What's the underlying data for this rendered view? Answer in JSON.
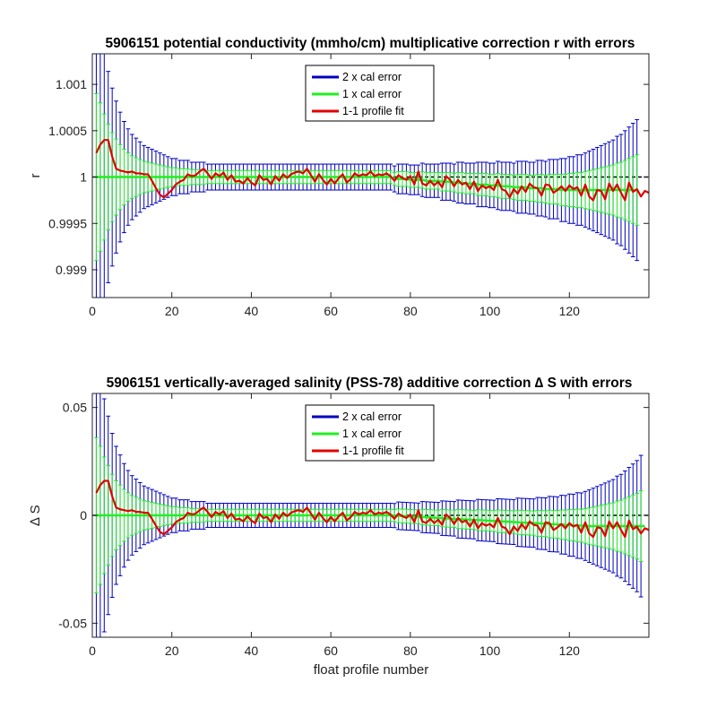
{
  "chart_data": [
    {
      "type": "line",
      "title": "5906151 potential conductivity (mmho/cm) multiplicative correction r with errors",
      "xlabel": "",
      "ylabel": "r",
      "xlim": [
        0,
        140
      ],
      "ylim": [
        0.9987,
        1.00133
      ],
      "xticks": [
        0,
        20,
        40,
        60,
        80,
        100,
        120
      ],
      "yticks": [
        0.999,
        0.9995,
        1,
        1.0005,
        1.001
      ],
      "ytick_labels": [
        "0.999",
        "0.9995",
        "1",
        "1.0005",
        "1.001"
      ],
      "reference_line": 1,
      "legend_position": "top-center",
      "legend": [
        "2 x cal error",
        "1 x cal error",
        "1-1 profile fit"
      ],
      "colors": {
        "two_x": "#0000bf",
        "one_x": "#22ee22",
        "fit": "#e00000",
        "reference": "#000000"
      },
      "center": [
        1,
        1,
        1,
        1,
        1,
        1,
        1,
        1,
        1,
        1,
        1,
        1,
        1,
        1,
        1,
        1,
        1,
        1,
        1,
        1,
        1,
        1,
        1,
        1,
        1,
        1,
        1,
        1,
        1,
        1,
        1,
        1,
        1,
        1,
        1,
        1,
        1,
        1,
        1,
        1,
        1,
        1,
        1,
        1,
        1,
        1,
        1,
        1,
        1,
        1,
        1,
        1,
        1,
        1,
        1,
        1,
        1,
        1,
        1,
        1,
        1,
        1,
        1,
        1,
        1,
        1,
        1,
        1,
        1,
        1,
        1,
        1,
        1,
        1,
        1,
        0.99998,
        0.99998,
        0.99998,
        0.99998,
        0.99997,
        0.99997,
        0.99997,
        0.99997,
        0.99996,
        0.99996,
        0.99996,
        0.99996,
        0.99995,
        0.99995,
        0.99995,
        0.99994,
        0.99994,
        0.99994,
        0.99993,
        0.99993,
        0.99993,
        0.99992,
        0.99992,
        0.99992,
        0.99991,
        0.99991,
        0.99991,
        0.9999,
        0.9999,
        0.9999,
        0.99989,
        0.99989,
        0.99989,
        0.99989,
        0.99988,
        0.99988,
        0.99988,
        0.99988,
        0.99987,
        0.99987,
        0.99987,
        0.99987,
        0.99986,
        0.99986,
        0.99986,
        0.99986,
        0.99986,
        0.99986,
        0.99986,
        0.99986,
        0.99986,
        0.99986,
        0.99986,
        0.99986,
        0.99986,
        0.99986,
        0.99986,
        0.99986,
        0.99986,
        0.99986,
        0.99986,
        0.99986
      ],
      "err1x": [
        0.0009,
        0.0008,
        0.00068,
        0.00057,
        0.00048,
        0.00041,
        0.00035,
        0.0003,
        0.00026,
        0.00023,
        0.00021,
        0.00019,
        0.00017,
        0.00016,
        0.00015,
        0.00014,
        0.00013,
        0.00012,
        0.00011,
        0.0001,
        0.0001,
        9e-05,
        9e-05,
        9e-05,
        8e-05,
        8e-05,
        8e-05,
        8e-05,
        7e-05,
        7e-05,
        7e-05,
        7e-05,
        7e-05,
        7e-05,
        7e-05,
        7e-05,
        7e-05,
        7e-05,
        7e-05,
        7e-05,
        7e-05,
        7e-05,
        7e-05,
        7e-05,
        7e-05,
        7e-05,
        7e-05,
        7e-05,
        7e-05,
        7e-05,
        7e-05,
        7e-05,
        7e-05,
        7e-05,
        7e-05,
        7e-05,
        7e-05,
        7e-05,
        7e-05,
        7e-05,
        7e-05,
        7e-05,
        7e-05,
        7e-05,
        7e-05,
        7e-05,
        7e-05,
        7e-05,
        7e-05,
        7e-05,
        7e-05,
        7e-05,
        7e-05,
        7e-05,
        7e-05,
        7e-05,
        8e-05,
        8e-05,
        8e-05,
        8e-05,
        8e-05,
        8e-05,
        9e-05,
        9e-05,
        9e-05,
        9e-05,
        9e-05,
        0.0001,
        0.0001,
        0.0001,
        0.0001,
        0.00011,
        0.00011,
        0.00011,
        0.00011,
        0.00011,
        0.00012,
        0.00012,
        0.00012,
        0.00012,
        0.00012,
        0.00013,
        0.00013,
        0.00013,
        0.00013,
        0.00013,
        0.00014,
        0.00014,
        0.00014,
        0.00014,
        0.00014,
        0.00015,
        0.00015,
        0.00015,
        0.00016,
        0.00016,
        0.00016,
        0.00017,
        0.00017,
        0.00018,
        0.00018,
        0.00019,
        0.00019,
        0.0002,
        0.00021,
        0.00022,
        0.00023,
        0.00024,
        0.00025,
        0.00026,
        0.00027,
        0.00029,
        0.0003,
        0.00032,
        0.00034,
        0.00036,
        0.00038,
        0.00041
      ],
      "err2x": [
        0.0018,
        0.0016,
        0.00136,
        0.00114,
        0.00096,
        0.00082,
        0.0007,
        0.0006,
        0.00052,
        0.00046,
        0.00042,
        0.00038,
        0.00034,
        0.00032,
        0.0003,
        0.00028,
        0.00026,
        0.00024,
        0.00022,
        0.0002,
        0.0002,
        0.00018,
        0.00018,
        0.00018,
        0.00016,
        0.00016,
        0.00016,
        0.00016,
        0.00014,
        0.00014,
        0.00014,
        0.00014,
        0.00014,
        0.00014,
        0.00014,
        0.00014,
        0.00014,
        0.00014,
        0.00014,
        0.00014,
        0.00014,
        0.00014,
        0.00014,
        0.00014,
        0.00014,
        0.00014,
        0.00014,
        0.00014,
        0.00014,
        0.00014,
        0.00014,
        0.00014,
        0.00014,
        0.00014,
        0.00014,
        0.00014,
        0.00014,
        0.00014,
        0.00014,
        0.00014,
        0.00014,
        0.00014,
        0.00014,
        0.00014,
        0.00014,
        0.00014,
        0.00014,
        0.00014,
        0.00014,
        0.00014,
        0.00014,
        0.00014,
        0.00014,
        0.00014,
        0.00014,
        0.00014,
        0.00016,
        0.00016,
        0.00016,
        0.00016,
        0.00016,
        0.00016,
        0.00018,
        0.00018,
        0.00018,
        0.00018,
        0.00018,
        0.0002,
        0.0002,
        0.0002,
        0.0002,
        0.00022,
        0.00022,
        0.00022,
        0.00022,
        0.00022,
        0.00024,
        0.00024,
        0.00024,
        0.00024,
        0.00024,
        0.00026,
        0.00026,
        0.00026,
        0.00026,
        0.00026,
        0.00028,
        0.00028,
        0.00028,
        0.00028,
        0.00028,
        0.0003,
        0.0003,
        0.0003,
        0.00032,
        0.00032,
        0.00032,
        0.00034,
        0.00034,
        0.00036,
        0.00036,
        0.00038,
        0.00038,
        0.0004,
        0.00042,
        0.00044,
        0.00046,
        0.00048,
        0.0005,
        0.00052,
        0.00054,
        0.00058,
        0.0006,
        0.00064,
        0.00068,
        0.00072,
        0.00076,
        0.00082
      ],
      "fit": [
        1.00026,
        1.00035,
        1.0004,
        1.0004,
        1.00022,
        1.00009,
        1.00007,
        1.00006,
        1.00005,
        1.00006,
        1.00004,
        1.00004,
        1.00003,
        1.00003,
        0.99996,
        0.99988,
        0.99981,
        0.99978,
        0.99982,
        0.99986,
        0.99992,
        0.99995,
        0.99997,
        1.00003,
        1.00001,
        1.00002,
        1.00006,
        1.00009,
        1.00004,
        0.99998,
        1.00004,
        1.00001,
        1.00005,
        0.99997,
        1.00002,
        0.99995,
        0.99996,
        0.99993,
        0.99999,
        0.99994,
        0.99991,
        1.00002,
        0.99997,
        0.99998,
        0.99992,
        1.00001,
        0.99996,
        1.00003,
        0.99999,
        1.00003,
        1.00005,
        1.00006,
        1.00004,
        1.00009,
        1.00002,
        0.99995,
        1.00003,
        0.99997,
        0.99992,
        0.99998,
        0.99993,
        0.99999,
        1.00003,
        0.99994,
        0.99998,
        1.00004,
        1.00001,
        1.00003,
        1.00002,
        1.00006,
        1.00001,
        1.00003,
        1.00002,
        1.00004,
        1.00001,
        0.99996,
        1.00002,
        0.99999,
        0.99997,
        1.00001,
        0.99992,
        1.00006,
        0.99993,
        0.99991,
        0.99996,
        0.99991,
        0.99995,
        0.99989,
        1.00001,
        0.99997,
        0.9999,
        0.99997,
        0.99992,
        0.99994,
        0.99987,
        0.99995,
        0.99985,
        0.99991,
        0.99988,
        0.9999,
        0.99986,
        0.99997,
        0.99987,
        0.99985,
        0.99978,
        0.99987,
        0.99982,
        0.9999,
        0.99984,
        0.99993,
        0.99989,
        0.99988,
        0.9998,
        0.99992,
        0.99991,
        0.99983,
        0.99986,
        0.9999,
        0.99985,
        0.99991,
        0.99987,
        0.99989,
        0.9998,
        0.99992,
        0.99979,
        0.99975,
        0.99986,
        0.99985,
        0.99976,
        0.99993,
        0.99985,
        0.99992,
        0.99983,
        0.99975,
        0.99994,
        0.99984,
        0.99987,
        0.99979,
        0.99985,
        0.99983
      ]
    },
    {
      "type": "line",
      "title": "5906151 vertically-averaged salinity (PSS-78) additive correction ∆ S with errors",
      "xlabel": "float profile number",
      "ylabel": "∆ S",
      "xlim": [
        0,
        140
      ],
      "ylim": [
        -0.0565,
        0.0565
      ],
      "xticks": [
        0,
        20,
        40,
        60,
        80,
        100,
        120
      ],
      "yticks": [
        -0.05,
        0,
        0.05
      ],
      "ytick_labels": [
        "-0.05",
        "0",
        "0.05"
      ],
      "reference_line": 0,
      "legend_position": "top-center",
      "legend": [
        "2 x cal error",
        "1 x cal error",
        "1-1 profile fit"
      ],
      "colors": {
        "two_x": "#0000bf",
        "one_x": "#22ee22",
        "fit": "#e00000",
        "reference": "#000000"
      },
      "center": [
        0,
        0,
        0,
        0,
        0,
        0,
        0,
        0,
        0,
        0,
        0,
        0,
        0,
        0,
        0,
        0,
        0,
        0,
        0,
        0,
        0,
        0,
        0,
        0,
        0,
        0,
        0,
        0,
        0,
        0,
        0,
        0,
        0,
        0,
        0,
        0,
        0,
        0,
        0,
        0,
        0,
        0,
        0,
        0,
        0,
        0,
        0,
        0,
        0,
        0,
        0,
        0,
        0,
        0,
        0,
        0,
        0,
        0,
        0,
        0,
        0,
        0,
        0,
        0,
        0,
        0,
        0,
        0,
        0,
        0,
        0,
        0,
        0,
        0,
        0,
        -0.0001,
        -0.0002,
        -0.0003,
        -0.0004,
        -0.0005,
        -0.0006,
        -0.0007,
        -0.0008,
        -0.0009,
        -0.001,
        -0.0011,
        -0.0012,
        -0.0013,
        -0.0014,
        -0.0015,
        -0.0016,
        -0.0017,
        -0.0018,
        -0.0019,
        -0.002,
        -0.0021,
        -0.0022,
        -0.0023,
        -0.0024,
        -0.0025,
        -0.0026,
        -0.0027,
        -0.0028,
        -0.0029,
        -0.003,
        -0.0031,
        -0.0032,
        -0.0033,
        -0.0034,
        -0.0035,
        -0.0036,
        -0.0037,
        -0.0038,
        -0.0039,
        -0.004,
        -0.0041,
        -0.0042,
        -0.0043,
        -0.0044,
        -0.0045,
        -0.0046,
        -0.0047,
        -0.0048,
        -0.0049,
        -0.005,
        -0.005,
        -0.005,
        -0.005,
        -0.005,
        -0.005,
        -0.005,
        -0.005,
        -0.005,
        -0.005,
        -0.005,
        -0.005,
        -0.005,
        -0.005,
        -0.005
      ],
      "err1x": [
        0.036,
        0.032,
        0.027,
        0.023,
        0.019,
        0.016,
        0.014,
        0.012,
        0.0104,
        0.0092,
        0.0084,
        0.0076,
        0.0068,
        0.0064,
        0.006,
        0.0056,
        0.0052,
        0.0048,
        0.0044,
        0.004,
        0.004,
        0.0036,
        0.0036,
        0.0036,
        0.0032,
        0.0032,
        0.0032,
        0.0032,
        0.0028,
        0.0028,
        0.0028,
        0.0028,
        0.0028,
        0.0028,
        0.0028,
        0.0028,
        0.0028,
        0.0028,
        0.0028,
        0.0028,
        0.0028,
        0.0028,
        0.0028,
        0.0028,
        0.0028,
        0.0028,
        0.0028,
        0.0028,
        0.0028,
        0.0028,
        0.0028,
        0.0028,
        0.0028,
        0.0028,
        0.0028,
        0.0028,
        0.0028,
        0.0028,
        0.0028,
        0.0028,
        0.0028,
        0.0028,
        0.0028,
        0.0028,
        0.0028,
        0.0028,
        0.0028,
        0.0028,
        0.0028,
        0.0028,
        0.0028,
        0.0028,
        0.0028,
        0.0028,
        0.0028,
        0.0028,
        0.0032,
        0.0032,
        0.0032,
        0.0032,
        0.0032,
        0.0032,
        0.0036,
        0.0036,
        0.0036,
        0.0036,
        0.0036,
        0.004,
        0.004,
        0.004,
        0.004,
        0.0044,
        0.0044,
        0.0044,
        0.0044,
        0.0044,
        0.0048,
        0.0048,
        0.0048,
        0.0048,
        0.0048,
        0.0052,
        0.0052,
        0.0052,
        0.0052,
        0.0052,
        0.0056,
        0.0056,
        0.0056,
        0.0056,
        0.0056,
        0.006,
        0.006,
        0.006,
        0.0064,
        0.0064,
        0.0064,
        0.0068,
        0.0068,
        0.0072,
        0.0072,
        0.0076,
        0.0076,
        0.008,
        0.0084,
        0.0088,
        0.0092,
        0.0096,
        0.01,
        0.0104,
        0.0108,
        0.0116,
        0.012,
        0.0128,
        0.0136,
        0.0144,
        0.0152,
        0.0164
      ],
      "err2x": [
        0.072,
        0.064,
        0.054,
        0.046,
        0.038,
        0.032,
        0.028,
        0.024,
        0.0208,
        0.0184,
        0.0168,
        0.0152,
        0.0136,
        0.0128,
        0.012,
        0.0112,
        0.0104,
        0.0096,
        0.0088,
        0.008,
        0.008,
        0.0072,
        0.0072,
        0.0072,
        0.0064,
        0.0064,
        0.0064,
        0.0064,
        0.0056,
        0.0056,
        0.0056,
        0.0056,
        0.0056,
        0.0056,
        0.0056,
        0.0056,
        0.0056,
        0.0056,
        0.0056,
        0.0056,
        0.0056,
        0.0056,
        0.0056,
        0.0056,
        0.0056,
        0.0056,
        0.0056,
        0.0056,
        0.0056,
        0.0056,
        0.0056,
        0.0056,
        0.0056,
        0.0056,
        0.0056,
        0.0056,
        0.0056,
        0.0056,
        0.0056,
        0.0056,
        0.0056,
        0.0056,
        0.0056,
        0.0056,
        0.0056,
        0.0056,
        0.0056,
        0.0056,
        0.0056,
        0.0056,
        0.0056,
        0.0056,
        0.0056,
        0.0056,
        0.0056,
        0.0056,
        0.0064,
        0.0064,
        0.0064,
        0.0064,
        0.0064,
        0.0064,
        0.0072,
        0.0072,
        0.0072,
        0.0072,
        0.0072,
        0.008,
        0.008,
        0.008,
        0.008,
        0.0088,
        0.0088,
        0.0088,
        0.0088,
        0.0088,
        0.0096,
        0.0096,
        0.0096,
        0.0096,
        0.0096,
        0.0104,
        0.0104,
        0.0104,
        0.0104,
        0.0104,
        0.0112,
        0.0112,
        0.0112,
        0.0112,
        0.0112,
        0.012,
        0.012,
        0.012,
        0.0128,
        0.0128,
        0.0128,
        0.0136,
        0.0136,
        0.0144,
        0.0144,
        0.0152,
        0.0152,
        0.016,
        0.0168,
        0.0176,
        0.0184,
        0.0192,
        0.02,
        0.0208,
        0.0216,
        0.0232,
        0.024,
        0.0256,
        0.0272,
        0.0288,
        0.0304,
        0.0328
      ],
      "fit": [
        0.0104,
        0.014,
        0.016,
        0.016,
        0.0088,
        0.0036,
        0.0028,
        0.0024,
        0.002,
        0.0024,
        0.0016,
        0.0016,
        0.0012,
        0.0012,
        -0.0016,
        -0.0048,
        -0.0076,
        -0.0088,
        -0.0072,
        -0.0056,
        -0.0032,
        -0.002,
        -0.0012,
        0.0012,
        0.0004,
        0.0008,
        0.0024,
        0.0036,
        0.0016,
        -0.0008,
        0.0016,
        0.0004,
        0.002,
        -0.0012,
        0.0008,
        -0.002,
        -0.0016,
        -0.0028,
        -0.0004,
        -0.0024,
        -0.0036,
        0.0008,
        -0.0012,
        -0.0008,
        -0.0032,
        0.0004,
        -0.0016,
        0.0012,
        -0.0004,
        0.0012,
        0.002,
        0.0024,
        0.0016,
        0.0036,
        0.0008,
        -0.002,
        0.0012,
        -0.0012,
        -0.0032,
        -0.0008,
        -0.0028,
        -0.0004,
        0.0012,
        -0.0024,
        -0.0008,
        0.0016,
        0.0004,
        0.0012,
        0.0008,
        0.0024,
        0.0004,
        0.0012,
        0.0008,
        0.0016,
        0.0004,
        -0.0016,
        0.0008,
        -0.0004,
        -0.0012,
        0.0004,
        -0.0032,
        0.0024,
        -0.0028,
        -0.0036,
        -0.0016,
        -0.0036,
        -0.002,
        -0.0044,
        0.0004,
        -0.0012,
        -0.004,
        -0.0012,
        -0.0032,
        -0.0024,
        -0.0052,
        -0.002,
        -0.006,
        -0.0036,
        -0.0048,
        -0.004,
        -0.0056,
        -0.0012,
        -0.0052,
        -0.006,
        -0.0088,
        -0.0052,
        -0.0072,
        -0.004,
        -0.0064,
        -0.0028,
        -0.0044,
        -0.0048,
        -0.008,
        -0.0032,
        -0.0036,
        -0.0068,
        -0.0056,
        -0.004,
        -0.006,
        -0.0036,
        -0.0052,
        -0.0044,
        -0.008,
        -0.0032,
        -0.0084,
        -0.01,
        -0.0056,
        -0.006,
        -0.0096,
        -0.0028,
        -0.006,
        -0.0032,
        -0.0068,
        -0.01,
        -0.0024,
        -0.0064,
        -0.0052,
        -0.0084,
        -0.006,
        -0.0068
      ]
    }
  ]
}
